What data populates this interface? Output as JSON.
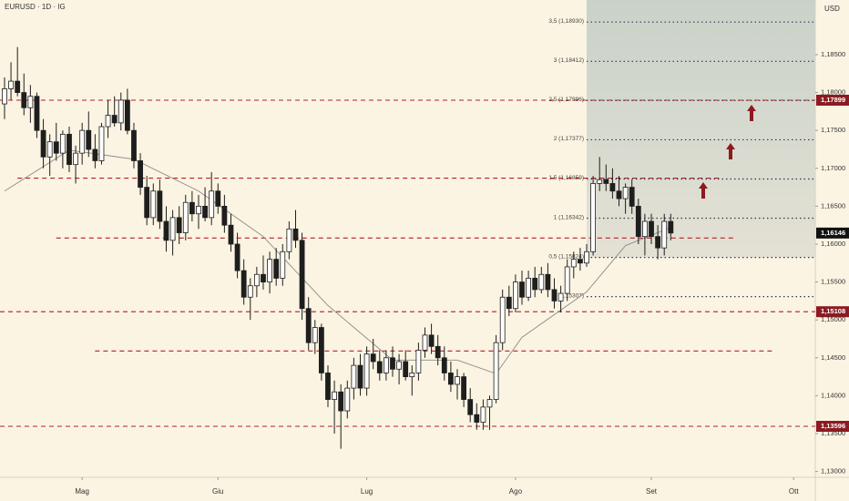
{
  "chart_data": {
    "type": "candlestick",
    "title": "EURUSD · 1D · IG",
    "currency": "USD",
    "up_color": "#ffffff",
    "down_color": "#1e1e1e",
    "level_color": "#b0202a",
    "level_label_color": "#8b1a22",
    "ma_color": "#8c8c8c",
    "open": [
      1.1785,
      1.1805,
      1.1815,
      1.18,
      1.178,
      1.1795,
      1.175,
      1.1715,
      1.1735,
      1.172,
      1.1745,
      1.1705,
      1.172,
      1.175,
      1.1725,
      1.171,
      1.1755,
      1.177,
      1.176,
      1.179,
      1.175,
      1.171,
      1.1675,
      1.1635,
      1.167,
      1.163,
      1.1605,
      1.1635,
      1.1615,
      1.1655,
      1.164,
      1.165,
      1.1635,
      1.167,
      1.165,
      1.1625,
      1.16,
      1.1565,
      1.153,
      1.1545,
      1.156,
      1.155,
      1.158,
      1.1555,
      1.159,
      1.162,
      1.1605,
      1.1515,
      1.147,
      1.149,
      1.143,
      1.1395,
      1.1405,
      1.138,
      1.141,
      1.144,
      1.141,
      1.1455,
      1.1445,
      1.143,
      1.145,
      1.1435,
      1.1445,
      1.1425,
      1.143,
      1.146,
      1.148,
      1.1465,
      1.145,
      1.143,
      1.1415,
      1.1425,
      1.1395,
      1.1375,
      1.1365,
      1.1385,
      1.1395,
      1.147,
      1.153,
      1.1515,
      1.155,
      1.153,
      1.1555,
      1.154,
      1.156,
      1.154,
      1.1525,
      1.1535,
      1.157,
      1.158,
      1.1575,
      1.159,
      1.168,
      1.1685,
      1.168,
      1.167,
      1.166,
      1.1675,
      1.165,
      1.161,
      1.163,
      1.161,
      1.1595,
      1.163
    ],
    "high": [
      1.182,
      1.184,
      1.186,
      1.1825,
      1.181,
      1.18,
      1.1765,
      1.1745,
      1.176,
      1.175,
      1.1755,
      1.173,
      1.176,
      1.1775,
      1.1745,
      1.176,
      1.179,
      1.1795,
      1.18,
      1.1805,
      1.176,
      1.172,
      1.169,
      1.168,
      1.1685,
      1.165,
      1.1645,
      1.165,
      1.1665,
      1.167,
      1.1665,
      1.1675,
      1.1695,
      1.168,
      1.1665,
      1.164,
      1.1615,
      1.158,
      1.1555,
      1.157,
      1.1585,
      1.159,
      1.1595,
      1.16,
      1.163,
      1.1645,
      1.1615,
      1.153,
      1.15,
      1.1495,
      1.144,
      1.142,
      1.1415,
      1.142,
      1.145,
      1.1455,
      1.1465,
      1.1475,
      1.146,
      1.146,
      1.1465,
      1.1455,
      1.146,
      1.144,
      1.147,
      1.149,
      1.1495,
      1.148,
      1.1465,
      1.1445,
      1.1435,
      1.143,
      1.141,
      1.139,
      1.1395,
      1.14,
      1.148,
      1.154,
      1.1545,
      1.156,
      1.1565,
      1.1565,
      1.157,
      1.157,
      1.1575,
      1.1555,
      1.1545,
      1.158,
      1.159,
      1.1595,
      1.16,
      1.169,
      1.1715,
      1.1705,
      1.17,
      1.169,
      1.168,
      1.1685,
      1.166,
      1.164,
      1.164,
      1.1625,
      1.164,
      1.164
    ],
    "low": [
      1.1765,
      1.179,
      1.1795,
      1.177,
      1.176,
      1.174,
      1.17,
      1.169,
      1.171,
      1.17,
      1.1695,
      1.168,
      1.1705,
      1.1715,
      1.17,
      1.1705,
      1.174,
      1.1755,
      1.175,
      1.1745,
      1.17,
      1.1665,
      1.1625,
      1.1625,
      1.162,
      1.159,
      1.1585,
      1.16,
      1.1605,
      1.163,
      1.162,
      1.163,
      1.1625,
      1.164,
      1.1615,
      1.159,
      1.1555,
      1.152,
      1.15,
      1.153,
      1.154,
      1.1535,
      1.1545,
      1.1545,
      1.158,
      1.1595,
      1.15,
      1.146,
      1.1455,
      1.142,
      1.1385,
      1.135,
      1.133,
      1.137,
      1.1395,
      1.14,
      1.14,
      1.1435,
      1.142,
      1.142,
      1.1425,
      1.1415,
      1.142,
      1.14,
      1.142,
      1.145,
      1.1455,
      1.144,
      1.142,
      1.1405,
      1.1395,
      1.1385,
      1.1365,
      1.1355,
      1.1355,
      1.1355,
      1.139,
      1.146,
      1.1505,
      1.151,
      1.152,
      1.1525,
      1.153,
      1.1535,
      1.153,
      1.1515,
      1.151,
      1.1525,
      1.1555,
      1.1565,
      1.157,
      1.1585,
      1.167,
      1.167,
      1.166,
      1.165,
      1.164,
      1.164,
      1.16,
      1.1585,
      1.16,
      1.158,
      1.1585,
      1.1605
    ],
    "close": [
      1.1805,
      1.1815,
      1.18,
      1.178,
      1.1795,
      1.175,
      1.1715,
      1.1735,
      1.172,
      1.1745,
      1.1705,
      1.172,
      1.175,
      1.1725,
      1.171,
      1.1755,
      1.177,
      1.176,
      1.179,
      1.175,
      1.171,
      1.1675,
      1.1635,
      1.167,
      1.163,
      1.1605,
      1.1635,
      1.1615,
      1.1655,
      1.164,
      1.165,
      1.1635,
      1.167,
      1.165,
      1.1625,
      1.16,
      1.1565,
      1.153,
      1.1545,
      1.156,
      1.155,
      1.158,
      1.1555,
      1.159,
      1.162,
      1.1605,
      1.1515,
      1.147,
      1.149,
      1.143,
      1.1395,
      1.1405,
      1.138,
      1.141,
      1.144,
      1.141,
      1.1455,
      1.1445,
      1.143,
      1.145,
      1.1435,
      1.1445,
      1.1425,
      1.143,
      1.146,
      1.148,
      1.1465,
      1.145,
      1.143,
      1.1415,
      1.1425,
      1.1395,
      1.1375,
      1.1365,
      1.1385,
      1.1395,
      1.147,
      1.153,
      1.1515,
      1.155,
      1.153,
      1.1555,
      1.154,
      1.156,
      1.154,
      1.1525,
      1.1535,
      1.157,
      1.158,
      1.1575,
      1.159,
      1.168,
      1.1685,
      1.168,
      1.167,
      1.166,
      1.1675,
      1.165,
      1.161,
      1.163,
      1.161,
      1.1595,
      1.163,
      1.16146
    ],
    "last_price_label": "1,16146",
    "moving_average": {
      "x": [
        0,
        10,
        20,
        30,
        40,
        50,
        60,
        70,
        76,
        80,
        90,
        96,
        103
      ],
      "values": [
        1.167,
        1.1724,
        1.1712,
        1.167,
        1.161,
        1.1519,
        1.1447,
        1.1447,
        1.1429,
        1.1477,
        1.1537,
        1.1598,
        1.1622
      ]
    },
    "xlim": [
      -0.7,
      125.35
    ],
    "xticks": [
      {
        "value": 12,
        "label": "Mag"
      },
      {
        "value": 33,
        "label": "Giu"
      },
      {
        "value": 56,
        "label": "Lug"
      },
      {
        "value": 79,
        "label": "Ago"
      },
      {
        "value": 100,
        "label": "Set"
      },
      {
        "value": 122,
        "label": "Ott"
      }
    ],
    "ylim": [
      1.12923,
      1.19221
    ],
    "yticks": [
      {
        "value": 1.13,
        "label": "1,13000"
      },
      {
        "value": 1.135,
        "label": "1,13500"
      },
      {
        "value": 1.14,
        "label": "1,14000"
      },
      {
        "value": 1.145,
        "label": "1,14500"
      },
      {
        "value": 1.15,
        "label": "1,15000"
      },
      {
        "value": 1.155,
        "label": "1,15500"
      },
      {
        "value": 1.16,
        "label": "1,16000"
      },
      {
        "value": 1.165,
        "label": "1,16500"
      },
      {
        "value": 1.17,
        "label": "1,17000"
      },
      {
        "value": 1.175,
        "label": "1,17500"
      },
      {
        "value": 1.18,
        "label": "1,18000"
      },
      {
        "value": 1.185,
        "label": "1,18500"
      }
    ],
    "levels": [
      {
        "value": 1.17899,
        "label": "1,17899"
      },
      {
        "value": 1.1687,
        "from": 2,
        "to": 111
      },
      {
        "value": 1.1608,
        "from": 8,
        "to": 113
      },
      {
        "value": 1.15108,
        "label": "1,15108"
      },
      {
        "value": 1.1459,
        "from": 14,
        "to": 119
      },
      {
        "value": 1.13596,
        "label": "1,13596"
      }
    ],
    "fib_from": 90,
    "fib": [
      {
        "value": 1.1893,
        "label": "3,5 (1,18930)"
      },
      {
        "value": 1.18412,
        "label": "3 (1,18412)"
      },
      {
        "value": 1.17896,
        "label": "2,5 (1,17896)"
      },
      {
        "value": 1.17377,
        "label": "2 (1,17377)"
      },
      {
        "value": 1.16859,
        "label": "1,5 (1,16859)"
      },
      {
        "value": 1.16342,
        "label": "1 (1,16342)"
      },
      {
        "value": 1.15824,
        "label": "0,5 (1,15824)"
      },
      {
        "value": 1.15307,
        "label": "0 (1,15307)"
      }
    ]
  }
}
